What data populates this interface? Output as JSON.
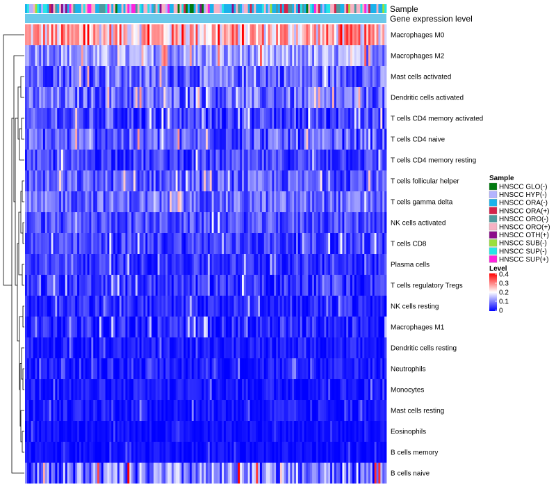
{
  "chart_data": {
    "type": "heatmap",
    "title": "",
    "annotation_rows": [
      "Sample",
      "Gene expression level"
    ],
    "rows": [
      "Macrophages M0",
      "Macrophages M2",
      "Mast cells activated",
      "Dendritic cells activated",
      "T cells CD4 memory activated",
      "T cells CD4 naive",
      "T cells CD4 memory resting",
      "T cells follicular helper",
      "T cells gamma delta",
      "NK cells activated",
      "T cells CD8",
      "Plasma cells",
      "T cells regulatory  Tregs",
      "NK cells resting",
      "Macrophages M1",
      "Dendritic cells resting",
      "Neutrophils",
      "Monocytes",
      "Mast cells resting",
      "Eosinophils",
      "B cells memory",
      "B cells naive"
    ],
    "row_mean_level": [
      0.25,
      0.12,
      0.08,
      0.08,
      0.05,
      0.07,
      0.05,
      0.07,
      0.08,
      0.06,
      0.05,
      0.04,
      0.04,
      0.03,
      0.03,
      0.02,
      0.02,
      0.02,
      0.02,
      0.01,
      0.01,
      0.09
    ],
    "row_spread": [
      0.12,
      0.07,
      0.07,
      0.07,
      0.06,
      0.07,
      0.05,
      0.06,
      0.06,
      0.05,
      0.05,
      0.04,
      0.05,
      0.04,
      0.05,
      0.03,
      0.03,
      0.03,
      0.03,
      0.02,
      0.02,
      0.1
    ],
    "n_columns": 180,
    "sample_legend": {
      "title": "Sample",
      "items": [
        {
          "label": "HNSCC GLO(-)",
          "color": "#007a0f"
        },
        {
          "label": "HNSCC HYP(-)",
          "color": "#b3b3ff"
        },
        {
          "label": "HNSCC ORA(-)",
          "color": "#1ab3ec"
        },
        {
          "label": "HNSCC ORA(+)",
          "color": "#d6224a"
        },
        {
          "label": "HNSCC ORO(-)",
          "color": "#4e9a9e"
        },
        {
          "label": "HNSCC ORO(+)",
          "color": "#f7b2c4"
        },
        {
          "label": "HNSCC OTH(+)",
          "color": "#8b0d8a"
        },
        {
          "label": "HNSCC SUB(-)",
          "color": "#9bdf3c"
        },
        {
          "label": "HNSCC SUP(-)",
          "color": "#26e6e6"
        },
        {
          "label": "HNSCC SUP(+)",
          "color": "#ff22dd"
        }
      ]
    },
    "level_legend": {
      "title": "Level",
      "ticks": [
        "0.4",
        "0.3",
        "0.2",
        "0.1",
        "0"
      ],
      "range": [
        0,
        0.4
      ],
      "colors": {
        "low": "#0000ff",
        "mid": "#ffffff",
        "high": "#ff0000"
      }
    },
    "gene_expression_bar_color": "#6bc9ea"
  }
}
